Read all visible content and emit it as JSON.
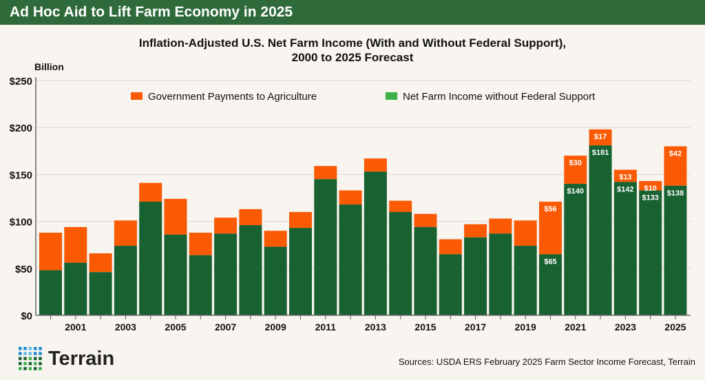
{
  "header": {
    "title": "Ad Hoc Aid to Lift Farm Economy in 2025"
  },
  "footer": {
    "source": "Sources: USDA ERS February 2025 Farm Sector Income Forecast, Terrain",
    "logo": "Terrain"
  },
  "colors": {
    "government": "#fb5a04",
    "net_income": "#186131",
    "header": "#2f6a3a"
  },
  "chart_data": {
    "type": "bar",
    "stacked": true,
    "title": "Inflation-Adjusted U.S. Net Farm Income (With and Without Federal Support), 2000 to 2025 Forecast",
    "title_lines": [
      "Inflation-Adjusted U.S. Net Farm Income (With and Without Federal Support),",
      "2000 to 2025 Forecast"
    ],
    "ylabel": "Billion",
    "ylim": [
      0,
      250
    ],
    "yticks": [
      "$0",
      "$50",
      "$100",
      "$150",
      "$200",
      "$250"
    ],
    "ytick_values": [
      0,
      50,
      100,
      150,
      200,
      250
    ],
    "grid": true,
    "legend": "top",
    "categories": [
      2000,
      2001,
      2002,
      2003,
      2004,
      2005,
      2006,
      2007,
      2008,
      2009,
      2010,
      2011,
      2012,
      2013,
      2014,
      2015,
      2016,
      2017,
      2018,
      2019,
      2020,
      2021,
      2022,
      2023,
      2024,
      2025
    ],
    "xtick_labels": [
      "2001",
      "2003",
      "2005",
      "2007",
      "2009",
      "2011",
      "2013",
      "2015",
      "2017",
      "2019",
      "2021",
      "2023",
      "2025"
    ],
    "series": [
      {
        "name": "Net Farm Income without Federal Support",
        "values": [
          48,
          56,
          46,
          74,
          121,
          86,
          64,
          87,
          96,
          73,
          93,
          145,
          118,
          153,
          110,
          94,
          65,
          83,
          87,
          74,
          65,
          140,
          181,
          142,
          133,
          138
        ]
      },
      {
        "name": "Government Payments to Agriculture",
        "values": [
          40,
          38,
          20,
          27,
          20,
          38,
          24,
          17,
          17,
          17,
          17,
          14,
          15,
          14,
          12,
          14,
          16,
          14,
          16,
          27,
          56,
          30,
          17,
          13,
          10,
          42
        ]
      }
    ],
    "data_labels": {
      "2020": {
        "net": "$65",
        "gov": "$56"
      },
      "2021": {
        "net": "$140",
        "gov": "$30"
      },
      "2022": {
        "net": "$181",
        "gov": "$17"
      },
      "2023": {
        "net": "$142",
        "gov": "$13"
      },
      "2024": {
        "net": "$133",
        "gov": "$10"
      },
      "2025": {
        "net": "$138",
        "gov": "$42"
      }
    }
  }
}
